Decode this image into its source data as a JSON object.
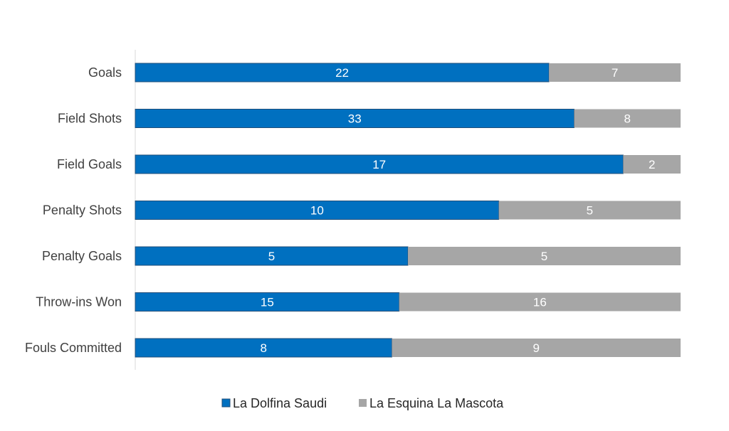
{
  "chart_data": {
    "type": "bar",
    "orientation": "horizontal",
    "stacked": "percent",
    "title": "",
    "xlabel": "",
    "ylabel": "",
    "categories": [
      "Goals",
      "Field Shots",
      "Field Goals",
      "Penalty Shots",
      "Penalty Goals",
      "Throw-ins Won",
      "Fouls Committed"
    ],
    "series": [
      {
        "name": "La Dolfina Saudi",
        "values": [
          22,
          33,
          17,
          10,
          5,
          15,
          8
        ],
        "color": "#0070C0"
      },
      {
        "name": "La Esquina La Mascota",
        "values": [
          7,
          8,
          2,
          5,
          5,
          16,
          9
        ],
        "color": "#A6A6A6"
      }
    ],
    "xlim": [
      0,
      1
    ],
    "grid": false,
    "data_labels": true,
    "legend_position": "bottom"
  }
}
